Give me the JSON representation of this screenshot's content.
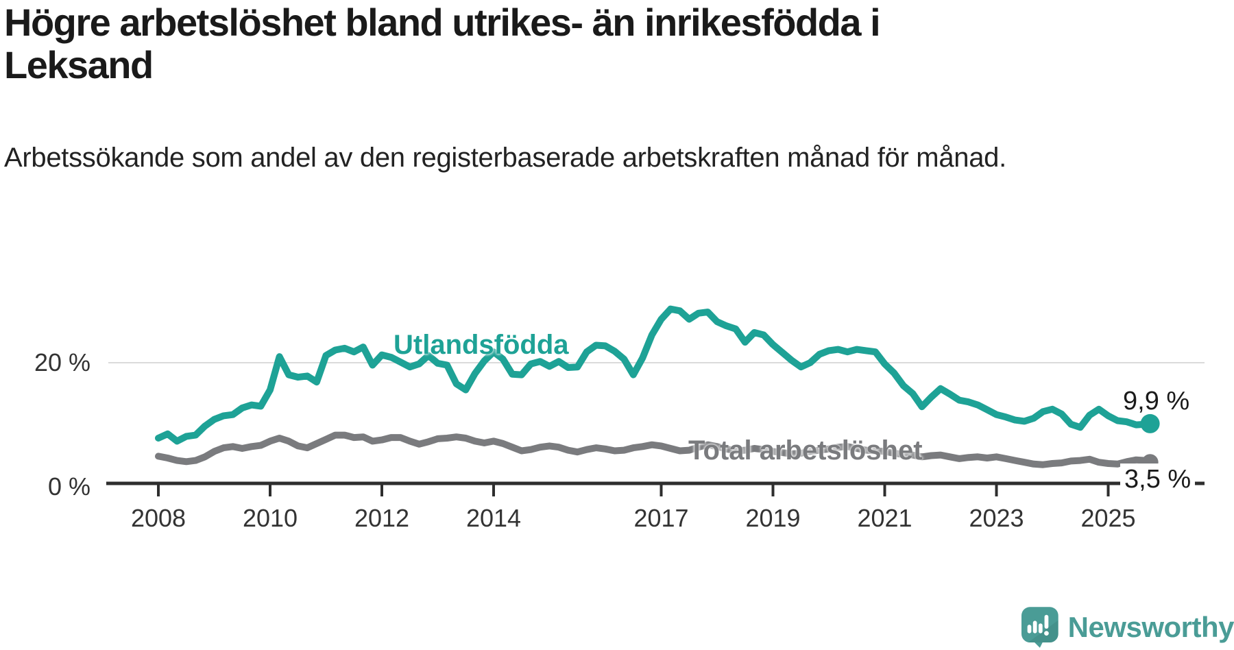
{
  "chart_data": {
    "type": "line",
    "title": "Högre arbetslöshet bland utrikes- än inrikesfödda i Leksand",
    "subtitle": "Arbetssökande som andel av den registerbaserade arbetskraften månad för månad.",
    "x_axis": {
      "start": 2008.0,
      "end": 2025.75,
      "points_step_years": 0.1666667,
      "tick_years": [
        2008,
        2010,
        2012,
        2014,
        2017,
        2019,
        2021,
        2023,
        2025
      ]
    },
    "y_axis": {
      "unit": "%",
      "range": [
        0,
        30
      ],
      "gridline_at": 20,
      "ticks": [
        {
          "value": 20,
          "label": "20 %"
        },
        {
          "value": 0,
          "label": "0 %"
        }
      ]
    },
    "colors": {
      "utlandsfodda": "#1EA296",
      "total": "#7A7B7E",
      "axis": "#2E2E2E",
      "gridline": "#DBDBDB",
      "tick_text": "#333333",
      "value_text": "#1A1A1A"
    },
    "series": [
      {
        "id": "utlandsfodda",
        "name": "Utlandsfödda",
        "color": "#1EA296",
        "end_label": "9,9 %",
        "end_value": 9.9,
        "values": [
          7.5,
          8.2,
          7.0,
          7.8,
          8.0,
          9.5,
          10.6,
          11.2,
          11.4,
          12.5,
          13.0,
          12.8,
          15.5,
          21.0,
          18.0,
          17.6,
          17.8,
          16.8,
          21.2,
          22.1,
          22.4,
          21.8,
          22.6,
          19.6,
          21.3,
          20.9,
          20.1,
          19.3,
          19.8,
          21.2,
          19.9,
          19.6,
          16.5,
          15.5,
          18.2,
          20.3,
          21.8,
          20.6,
          18.1,
          18.0,
          19.8,
          20.2,
          19.4,
          20.2,
          19.2,
          19.3,
          21.8,
          22.9,
          22.8,
          21.9,
          20.6,
          18.0,
          20.8,
          24.6,
          27.2,
          28.9,
          28.6,
          27.2,
          28.2,
          28.4,
          26.8,
          26.1,
          25.6,
          23.4,
          25.0,
          24.6,
          23.0,
          21.7,
          20.4,
          19.3,
          20.0,
          21.4,
          22.0,
          22.2,
          21.8,
          22.2,
          22.0,
          21.8,
          19.8,
          18.3,
          16.2,
          14.9,
          12.7,
          14.3,
          15.7,
          14.8,
          13.8,
          13.5,
          13.0,
          12.2,
          11.4,
          11.0,
          10.5,
          10.3,
          10.8,
          11.9,
          12.3,
          11.5,
          9.8,
          9.3,
          11.3,
          12.3,
          11.2,
          10.4,
          10.2,
          9.7,
          9.8,
          9.9
        ]
      },
      {
        "id": "total",
        "name": "Total arbetslöshet",
        "color": "#7A7B7E",
        "end_label": "3,5 %",
        "end_value": 3.5,
        "values": [
          4.5,
          4.2,
          3.8,
          3.6,
          3.8,
          4.4,
          5.3,
          5.9,
          6.1,
          5.8,
          6.1,
          6.3,
          7.0,
          7.5,
          7.0,
          6.2,
          5.9,
          6.6,
          7.3,
          8.0,
          8.0,
          7.6,
          7.7,
          7.0,
          7.2,
          7.6,
          7.6,
          7.0,
          6.5,
          6.9,
          7.4,
          7.5,
          7.7,
          7.5,
          7.0,
          6.7,
          7.0,
          6.6,
          6.0,
          5.4,
          5.6,
          6.0,
          6.2,
          6.0,
          5.5,
          5.2,
          5.6,
          5.9,
          5.7,
          5.4,
          5.5,
          5.9,
          6.1,
          6.4,
          6.2,
          5.8,
          5.4,
          5.5,
          6.0,
          6.4,
          6.1,
          5.7,
          5.4,
          5.5,
          5.8,
          5.6,
          5.3,
          5.1,
          4.9,
          5.0,
          5.3,
          5.5,
          5.7,
          6.0,
          6.1,
          5.8,
          5.5,
          5.4,
          5.3,
          5.0,
          4.8,
          4.7,
          4.4,
          4.6,
          4.7,
          4.4,
          4.1,
          4.3,
          4.4,
          4.2,
          4.4,
          4.1,
          3.8,
          3.5,
          3.2,
          3.1,
          3.3,
          3.4,
          3.7,
          3.8,
          4.0,
          3.5,
          3.3,
          3.2,
          3.6,
          3.9,
          3.8,
          3.5
        ]
      }
    ]
  },
  "branding": {
    "logo_text": "Newsworthy",
    "logo_icon": "newsworthy-speech-bubble-bar-chart-icon",
    "logo_color": "#4A9C96"
  }
}
